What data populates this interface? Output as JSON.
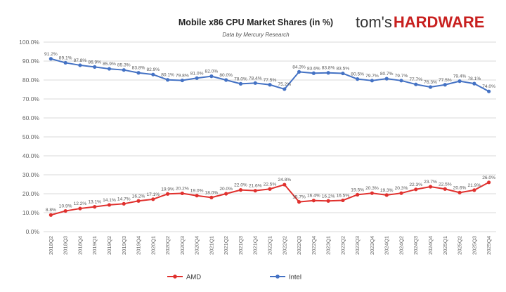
{
  "logo": {
    "part1": "tom's",
    "part2": "HARDWARE"
  },
  "chart_data": {
    "type": "line",
    "title": "Mobile x86 CPU Market Shares (in %)",
    "subtitle": "Data by Mercury Research",
    "xlabel": "",
    "ylabel": "",
    "ylim": [
      0,
      100
    ],
    "yticks": [
      "0.0%",
      "10.0%",
      "20.0%",
      "30.0%",
      "40.0%",
      "50.0%",
      "60.0%",
      "70.0%",
      "80.0%",
      "90.0%",
      "100.0%"
    ],
    "grid": true,
    "legend": "bottom",
    "categories": [
      "2018Q2",
      "2018Q3",
      "2018Q4",
      "2019Q1",
      "2019Q2",
      "2019Q3",
      "2019Q4",
      "2020Q1",
      "2020Q2",
      "2020Q3",
      "2020Q4",
      "2021Q1",
      "2021Q2",
      "2021Q3",
      "2021Q4",
      "2022Q1",
      "2022Q2",
      "2022Q3",
      "2022Q4",
      "2023Q1",
      "2023Q2",
      "2023Q3",
      "2023Q4",
      "2024Q1",
      "2024Q2",
      "2024Q3",
      "2024Q4",
      "2025Q1",
      "2025Q2",
      "2025Q3",
      "2025Q4"
    ],
    "series": [
      {
        "name": "AMD",
        "color": "#e0312e",
        "values": [
          8.8,
          10.9,
          12.2,
          13.1,
          14.1,
          14.7,
          16.2,
          17.1,
          19.9,
          20.2,
          19.0,
          18.0,
          20.0,
          22.0,
          21.6,
          22.5,
          24.8,
          15.7,
          16.4,
          16.2,
          16.5,
          19.5,
          20.3,
          19.3,
          20.3,
          22.3,
          23.7,
          22.5,
          20.6,
          21.9,
          26.0
        ],
        "labels": [
          "8.8%",
          "10.9%",
          "12.2%",
          "13.1%",
          "14.1%",
          "14.7%",
          "16.2%",
          "17.1%",
          "19.9%",
          "20.2%",
          "19.0%",
          "18.0%",
          "20.0%",
          "22.0%",
          "21.6%",
          "22.5%",
          "24.8%",
          "15.7%",
          "16.4%",
          "16.2%",
          "16.5%",
          "19.5%",
          "20.3%",
          "19.3%",
          "20.3%",
          "22.3%",
          "23.7%",
          "22.5%",
          "20.6%",
          "21.9%",
          "26.0%"
        ]
      },
      {
        "name": "Intel",
        "color": "#4472c4",
        "values": [
          91.2,
          89.1,
          87.8,
          86.9,
          85.9,
          85.3,
          83.8,
          82.9,
          80.1,
          79.8,
          81.0,
          82.0,
          80.0,
          78.0,
          78.4,
          77.5,
          75.2,
          84.3,
          83.6,
          83.8,
          83.5,
          80.5,
          79.7,
          80.7,
          79.7,
          77.7,
          76.3,
          77.5,
          79.4,
          78.1,
          74.0
        ],
        "labels": [
          "91.2%",
          "89.1%",
          "87.8%",
          "86.9%",
          "85.9%",
          "85.3%",
          "83.8%",
          "82.9%",
          "80.1%",
          "79.8%",
          "81.0%",
          "82.0%",
          "80.0%",
          "78.0%",
          "78.4%",
          "77.5%",
          "75.2%",
          "84.3%",
          "83.6%",
          "83.8%",
          "83.5%",
          "80.5%",
          "79.7%",
          "80.7%",
          "79.7%",
          "77.7%",
          "76.3%",
          "77.5%",
          "79.4%",
          "78.1%",
          "74.0%"
        ]
      }
    ]
  }
}
